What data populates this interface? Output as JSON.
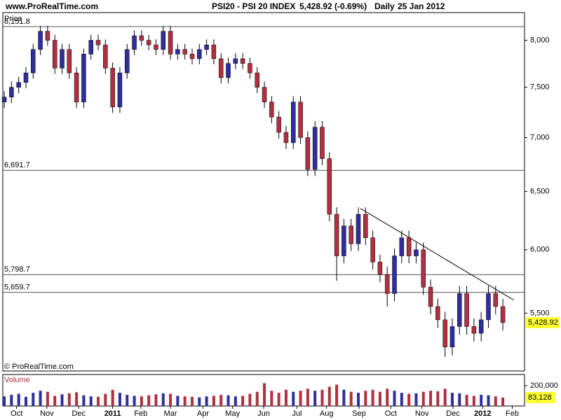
{
  "header": {
    "site": "www.ProRealTime.com",
    "title": "PSI20 - PSI 20 INDEX",
    "quote": "5,428.92 (-0.69%)",
    "period": "Daily",
    "date": "25 Jan 2012"
  },
  "chart_data": [
    {
      "type": "candlestick",
      "label": "Price",
      "copyright": "© ProRealTime.com",
      "log_scale": true,
      "up_color": "#2e2e9e",
      "down_color": "#b03040",
      "x": [
        0,
        1,
        2,
        3,
        4,
        5,
        6,
        7,
        8,
        9,
        10,
        11,
        12,
        13,
        14,
        15,
        16,
        17,
        18,
        19,
        20,
        21,
        22,
        23,
        24,
        25,
        26,
        27,
        28,
        29,
        30,
        31,
        32,
        33,
        34,
        35,
        36,
        37,
        38,
        39,
        40,
        41,
        42,
        43,
        44,
        45,
        46,
        47,
        48,
        49,
        50,
        51,
        52,
        53,
        54,
        55,
        56,
        57,
        58,
        59,
        60,
        61,
        62,
        63,
        64,
        65,
        66,
        67,
        68,
        69
      ],
      "open": [
        7350,
        7400,
        7500,
        7550,
        7650,
        7900,
        8100,
        8000,
        7700,
        7900,
        7650,
        7350,
        7850,
        8000,
        7950,
        7700,
        7300,
        7650,
        7900,
        8050,
        8000,
        7950,
        7900,
        8100,
        7850,
        7900,
        7850,
        7800,
        7900,
        7950,
        7800,
        7600,
        7750,
        7800,
        7750,
        7650,
        7500,
        7350,
        7200,
        7050,
        6950,
        7350,
        7000,
        6700,
        7100,
        6800,
        6300,
        5950,
        6200,
        6050,
        6300,
        6100,
        5900,
        5800,
        5650,
        5950,
        6100,
        5950,
        6000,
        5700,
        5550,
        5450,
        5250,
        5400,
        5650,
        5400,
        5350,
        5450,
        5650,
        5550
      ],
      "high": [
        7460,
        7560,
        7610,
        7710,
        7960,
        8160,
        8160,
        8060,
        7960,
        7960,
        7710,
        7910,
        8060,
        8060,
        8010,
        7760,
        7710,
        7960,
        8110,
        8110,
        8060,
        8010,
        8160,
        8160,
        7960,
        7960,
        7910,
        7960,
        8010,
        8010,
        7860,
        7810,
        7860,
        7860,
        7810,
        7710,
        7560,
        7410,
        7260,
        7110,
        7410,
        7410,
        7060,
        7160,
        7160,
        6860,
        6360,
        6260,
        6260,
        6360,
        6360,
        6160,
        5960,
        5860,
        6010,
        6160,
        6160,
        6060,
        6060,
        5760,
        5610,
        5510,
        5460,
        5710,
        5710,
        5460,
        5510,
        5710,
        5710,
        5610
      ],
      "low": [
        7290,
        7340,
        7440,
        7490,
        7590,
        7840,
        7940,
        7640,
        7640,
        7590,
        7290,
        7290,
        7790,
        7890,
        7640,
        7240,
        7240,
        7590,
        7840,
        7940,
        7890,
        7840,
        7840,
        7790,
        7790,
        7790,
        7740,
        7740,
        7840,
        7740,
        7540,
        7540,
        7690,
        7690,
        7590,
        7440,
        7290,
        7140,
        6990,
        6890,
        6890,
        6940,
        6640,
        6640,
        6740,
        6240,
        5750,
        5890,
        5990,
        5990,
        6040,
        5840,
        5740,
        5550,
        5590,
        5890,
        5890,
        5890,
        5640,
        5490,
        5390,
        5180,
        5190,
        5340,
        5340,
        5290,
        5290,
        5390,
        5490,
        5370
      ],
      "close": [
        7400,
        7500,
        7550,
        7650,
        7900,
        8100,
        8000,
        7700,
        7900,
        7650,
        7350,
        7850,
        8000,
        7950,
        7700,
        7300,
        7650,
        7900,
        8050,
        8000,
        7950,
        7900,
        8100,
        7850,
        7900,
        7850,
        7800,
        7900,
        7950,
        7800,
        7600,
        7750,
        7800,
        7750,
        7650,
        7500,
        7350,
        7200,
        7050,
        6950,
        7350,
        7000,
        6700,
        7100,
        6800,
        6300,
        5950,
        6200,
        6050,
        6300,
        6100,
        5900,
        5800,
        5650,
        5950,
        6100,
        5950,
        6000,
        5700,
        5550,
        5450,
        5250,
        5400,
        5650,
        5400,
        5350,
        5450,
        5650,
        5550,
        5428.92
      ],
      "levels": [
        {
          "value": 8151.8,
          "label": "8,151.8"
        },
        {
          "value": 6691.7,
          "label": "6,691.7"
        },
        {
          "value": 5798.7,
          "label": "5,798.7"
        },
        {
          "value": 5659.7,
          "label": "5,659.7"
        }
      ],
      "trendline": {
        "x": [
          49.3,
          70.5
        ],
        "y": [
          6350,
          5600
        ]
      },
      "last_price": {
        "value": 5428.92,
        "label": "5,428.92"
      },
      "xlim": [
        -0.2,
        72
      ],
      "xticks": [
        {
          "value": 1.7,
          "label": "Oct"
        },
        {
          "value": 5.9,
          "label": "Nov"
        },
        {
          "value": 10.3,
          "label": "Dec"
        },
        {
          "value": 15,
          "label": "2011"
        },
        {
          "value": 18.9,
          "label": "Feb"
        },
        {
          "value": 23,
          "label": "Mar"
        },
        {
          "value": 27.5,
          "label": "Apr"
        },
        {
          "value": 31.6,
          "label": "May"
        },
        {
          "value": 35.9,
          "label": "Jun"
        },
        {
          "value": 40.5,
          "label": "Jul"
        },
        {
          "value": 44.6,
          "label": "Aug"
        },
        {
          "value": 49.1,
          "label": "Sep"
        },
        {
          "value": 53.5,
          "label": "Oct"
        },
        {
          "value": 57.8,
          "label": "Nov"
        },
        {
          "value": 62.1,
          "label": "Dec"
        },
        {
          "value": 66.2,
          "label": "2012"
        },
        {
          "value": 70.3,
          "label": "Feb"
        }
      ],
      "ylim": [
        5080,
        8310
      ],
      "yticks": [
        {
          "value": 5500,
          "label": "5,500"
        },
        {
          "value": 6000,
          "label": "6,000"
        },
        {
          "value": 6500,
          "label": "6,500"
        },
        {
          "value": 7000,
          "label": "7,000"
        },
        {
          "value": 7500,
          "label": "7,500"
        },
        {
          "value": 8000,
          "label": "8,000"
        }
      ]
    },
    {
      "type": "bar",
      "label": "Volume",
      "values": [
        95000,
        110000,
        120000,
        90000,
        130000,
        150000,
        140000,
        100000,
        115000,
        125000,
        135000,
        105000,
        95000,
        90000,
        120000,
        160000,
        130000,
        110000,
        100000,
        95000,
        105000,
        115000,
        125000,
        120000,
        100000,
        95000,
        90000,
        85000,
        95000,
        100000,
        110000,
        105000,
        95000,
        100000,
        120000,
        140000,
        225000,
        150000,
        130000,
        160000,
        140000,
        150000,
        170000,
        150000,
        160000,
        190000,
        210000,
        160000,
        140000,
        130000,
        150000,
        160000,
        140000,
        170000,
        150000,
        130000,
        120000,
        125000,
        140000,
        150000,
        145000,
        170000,
        130000,
        125000,
        110000,
        100000,
        110000,
        105000,
        95000,
        83128
      ],
      "last_volume": {
        "value": 83128,
        "label": "83,128"
      },
      "ylim": [
        0,
        310000
      ],
      "yticks": [
        {
          "value": 200000,
          "label": "200,000"
        }
      ]
    }
  ]
}
